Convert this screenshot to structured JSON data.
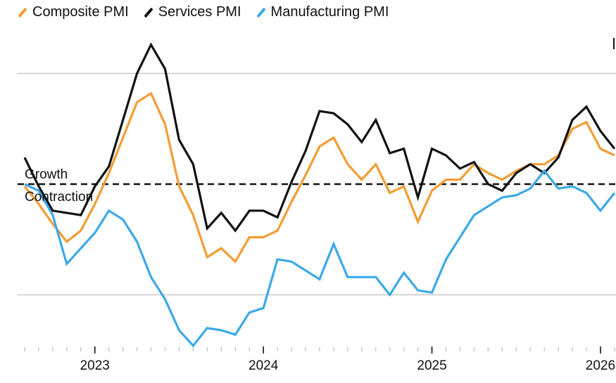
{
  "chart_data": {
    "type": "line",
    "title": "",
    "xlabel": "",
    "ylabel": "",
    "legend": {
      "placement": "top-left",
      "entries": [
        "Composite PMI",
        "Services PMI",
        "Manufacturing PMI"
      ]
    },
    "x_start": "2022-08",
    "x": [
      "2022-08",
      "2022-09",
      "2022-10",
      "2022-11",
      "2022-12",
      "2023-01",
      "2023-02",
      "2023-03",
      "2023-04",
      "2023-05",
      "2023-06",
      "2023-07",
      "2023-08",
      "2023-09",
      "2023-10",
      "2023-11",
      "2023-12",
      "2024-01",
      "2024-02",
      "2024-03",
      "2024-04",
      "2024-05",
      "2024-06",
      "2024-07",
      "2024-08",
      "2024-09",
      "2024-10",
      "2024-11",
      "2024-12",
      "2025-01",
      "2025-02",
      "2025-03",
      "2025-04",
      "2025-05",
      "2025-06",
      "2025-07",
      "2025-08",
      "2025-09",
      "2025-10",
      "2025-11",
      "2025-12",
      "2026-01",
      "2026-02"
    ],
    "x_ticks": [
      {
        "label": "2023",
        "date": "2023-01"
      },
      {
        "label": "2024",
        "date": "2024-01"
      },
      {
        "label": "2025",
        "date": "2025-01"
      },
      {
        "label": "2026",
        "date": "2026-01"
      }
    ],
    "ylim": [
      43.2,
      56.9
    ],
    "y_gridlines": [
      45,
      55
    ],
    "threshold": {
      "value": 50,
      "above_label": "Growth",
      "below_label": "Contraction"
    },
    "grid": true,
    "series": [
      {
        "name": "Composite PMI",
        "color": "#f39c33",
        "values": [
          49.9,
          49.1,
          48.2,
          47.4,
          47.9,
          49.1,
          50.5,
          52.1,
          53.7,
          54.1,
          52.7,
          49.9,
          48.6,
          46.7,
          47.1,
          46.5,
          47.6,
          47.6,
          47.9,
          49.2,
          50.4,
          51.7,
          52.1,
          50.9,
          50.2,
          50.9,
          49.6,
          49.9,
          48.3,
          49.7,
          50.2,
          50.2,
          50.9,
          50.5,
          50.2,
          50.6,
          50.9,
          50.9,
          51.3,
          52.5,
          52.8,
          51.6,
          51.3
        ]
      },
      {
        "name": "Services PMI",
        "color": "#111111",
        "values": [
          51.2,
          49.9,
          48.8,
          48.7,
          48.6,
          49.9,
          50.8,
          52.9,
          55.0,
          56.3,
          55.2,
          52.0,
          50.9,
          48.0,
          48.7,
          47.9,
          48.8,
          48.8,
          48.5,
          50.1,
          51.5,
          53.3,
          53.2,
          52.7,
          51.9,
          52.9,
          51.4,
          51.6,
          49.4,
          51.6,
          51.3,
          50.7,
          51.0,
          50.0,
          49.7,
          50.5,
          50.9,
          50.5,
          51.2,
          52.9,
          53.5,
          52.4,
          51.6
        ]
      },
      {
        "name": "Manufacturing PMI",
        "color": "#3aa9e8",
        "values": [
          50.0,
          49.7,
          48.6,
          46.4,
          47.1,
          47.8,
          48.8,
          48.4,
          47.4,
          45.8,
          44.8,
          43.4,
          42.7,
          43.5,
          43.4,
          43.2,
          44.2,
          44.4,
          46.6,
          46.5,
          46.1,
          45.7,
          47.3,
          45.8,
          45.8,
          45.8,
          45.0,
          46.0,
          45.2,
          45.1,
          46.6,
          47.6,
          48.6,
          49.0,
          49.4,
          49.5,
          49.8,
          50.6,
          49.8,
          49.9,
          49.6,
          48.8,
          49.6
        ]
      }
    ]
  }
}
